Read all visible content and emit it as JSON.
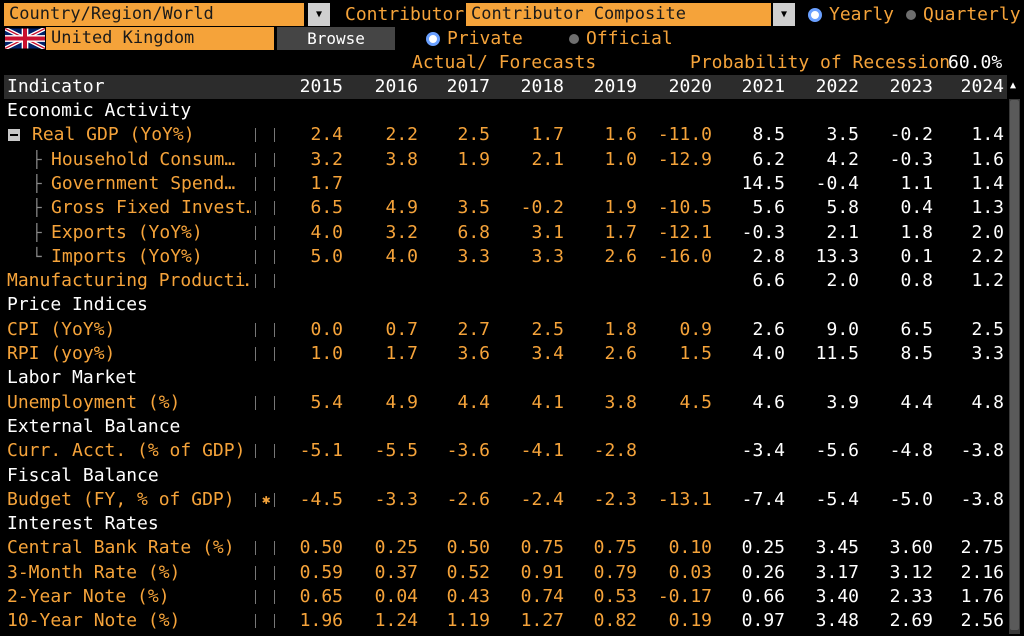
{
  "toolbar": {
    "country_label": "Country/Region/World",
    "contributor_label": "Contributor",
    "contributor_value": "Contributor Composite",
    "country_value": "United Kingdom",
    "browse_label": "Browse",
    "yearly_label": "Yearly",
    "quarterly_label": "Quarterly",
    "private_label": "Private",
    "official_label": "Official",
    "actual_forecasts_label": "Actual/ Forecasts",
    "recession_label": "Probability of Recession",
    "recession_value": "60.0%"
  },
  "colors": {
    "accent": "#f5a33a",
    "header_bg": "#2c2c2c",
    "radio_on": "#6aa0ff"
  },
  "table": {
    "indicator_header": "Indicator",
    "years": [
      "2015",
      "2016",
      "2017",
      "2018",
      "2019",
      "2020",
      "2021",
      "2022",
      "2023",
      "2024"
    ],
    "rows": [
      {
        "type": "section",
        "label": "Economic Activity"
      },
      {
        "type": "data",
        "label": "Real GDP (YoY%)",
        "level": 0,
        "collapsible": true,
        "values": [
          "2.4",
          "2.2",
          "2.5",
          "1.7",
          "1.6",
          "-11.0",
          "8.5",
          "3.5",
          "-0.2",
          "1.4"
        ]
      },
      {
        "type": "data",
        "label": "Household Consum…",
        "level": 1,
        "values": [
          "3.2",
          "3.8",
          "1.9",
          "2.1",
          "1.0",
          "-12.9",
          "6.2",
          "4.2",
          "-0.3",
          "1.6"
        ]
      },
      {
        "type": "data",
        "label": "Government Spend…",
        "level": 1,
        "values": [
          "1.7",
          "",
          "",
          "",
          "",
          "",
          "14.5",
          "-0.4",
          "1.1",
          "1.4"
        ]
      },
      {
        "type": "data",
        "label": "Gross Fixed Invest…",
        "level": 1,
        "values": [
          "6.5",
          "4.9",
          "3.5",
          "-0.2",
          "1.9",
          "-10.5",
          "5.6",
          "5.8",
          "0.4",
          "1.3"
        ]
      },
      {
        "type": "data",
        "label": "Exports (YoY%)",
        "level": 1,
        "values": [
          "4.0",
          "3.2",
          "6.8",
          "3.1",
          "1.7",
          "-12.1",
          "-0.3",
          "2.1",
          "1.8",
          "2.0"
        ]
      },
      {
        "type": "data",
        "label": "Imports (YoY%)",
        "level": 1,
        "last": true,
        "values": [
          "5.0",
          "4.0",
          "3.3",
          "3.3",
          "2.6",
          "-16.0",
          "2.8",
          "13.3",
          "0.1",
          "2.2"
        ]
      },
      {
        "type": "data",
        "label": "Manufacturing Producti…",
        "level": 0,
        "values": [
          "",
          "",
          "",
          "",
          "",
          "",
          "6.6",
          "2.0",
          "0.8",
          "1.2"
        ]
      },
      {
        "type": "section",
        "label": "Price Indices"
      },
      {
        "type": "data",
        "label": "CPI (YoY%)",
        "level": 0,
        "values": [
          "0.0",
          "0.7",
          "2.7",
          "2.5",
          "1.8",
          "0.9",
          "2.6",
          "9.0",
          "6.5",
          "2.5"
        ]
      },
      {
        "type": "data",
        "label": "RPI (yoy%)",
        "level": 0,
        "values": [
          "1.0",
          "1.7",
          "3.6",
          "3.4",
          "2.6",
          "1.5",
          "4.0",
          "11.5",
          "8.5",
          "3.3"
        ]
      },
      {
        "type": "section",
        "label": "Labor Market"
      },
      {
        "type": "data",
        "label": "Unemployment (%)",
        "level": 0,
        "values": [
          "5.4",
          "4.9",
          "4.4",
          "4.1",
          "3.8",
          "4.5",
          "4.6",
          "3.9",
          "4.4",
          "4.8"
        ]
      },
      {
        "type": "section",
        "label": "External Balance"
      },
      {
        "type": "data",
        "label": "Curr. Acct. (% of GDP)",
        "level": 0,
        "values": [
          "-5.1",
          "-5.5",
          "-3.6",
          "-4.1",
          "-2.8",
          "",
          "-3.4",
          "-5.6",
          "-4.8",
          "-3.8"
        ]
      },
      {
        "type": "section",
        "label": "Fiscal Balance"
      },
      {
        "type": "data",
        "label": "Budget (FY, % of GDP)",
        "level": 0,
        "star": "✱",
        "values": [
          "-4.5",
          "-3.3",
          "-2.6",
          "-2.4",
          "-2.3",
          "-13.1",
          "-7.4",
          "-5.4",
          "-5.0",
          "-3.8"
        ]
      },
      {
        "type": "section",
        "label": "Interest Rates"
      },
      {
        "type": "data",
        "label": "Central Bank Rate (%)",
        "level": 0,
        "values": [
          "0.50",
          "0.25",
          "0.50",
          "0.75",
          "0.75",
          "0.10",
          "0.25",
          "3.45",
          "3.60",
          "2.75"
        ]
      },
      {
        "type": "data",
        "label": "3-Month Rate (%)",
        "level": 0,
        "values": [
          "0.59",
          "0.37",
          "0.52",
          "0.91",
          "0.79",
          "0.03",
          "0.26",
          "3.17",
          "3.12",
          "2.16"
        ]
      },
      {
        "type": "data",
        "label": "2-Year Note (%)",
        "level": 0,
        "values": [
          "0.65",
          "0.04",
          "0.43",
          "0.74",
          "0.53",
          "-0.17",
          "0.66",
          "3.40",
          "2.33",
          "1.76"
        ]
      },
      {
        "type": "data",
        "label": "10-Year Note (%)",
        "level": 0,
        "values": [
          "1.96",
          "1.24",
          "1.19",
          "1.27",
          "0.82",
          "0.19",
          "0.97",
          "3.48",
          "2.69",
          "2.56"
        ]
      }
    ]
  }
}
